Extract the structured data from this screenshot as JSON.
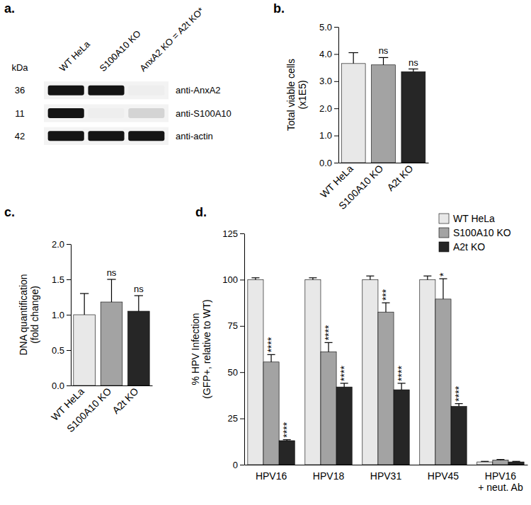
{
  "chart_data": [
    {
      "type": "blot",
      "title": "a.",
      "ylabel": "kDa",
      "categories": [
        "WT HeLa",
        "S100A10 KO",
        "AnxA2 KO = A2t KO*"
      ],
      "rows": [
        {
          "size": 36,
          "label": "anti-AnxA2",
          "values": [
            1,
            1,
            0
          ]
        },
        {
          "size": 11,
          "label": "anti-S100A10",
          "values": [
            1,
            0,
            0.12
          ]
        },
        {
          "size": 42,
          "label": "anti-actin",
          "values": [
            1,
            1,
            1
          ]
        }
      ]
    },
    {
      "type": "bar",
      "title": "b.",
      "ylabel": "Total viable cells\n(x1E5)",
      "categories": [
        "WT HeLa",
        "S100A10 KO",
        "A2t KO"
      ],
      "values": [
        3.65,
        3.6,
        3.35
      ],
      "errors": [
        0.4,
        0.27,
        0.1
      ],
      "annotations": [
        null,
        "ns",
        "ns"
      ],
      "colors": [
        "#e8e8e8",
        "#a3a3a3",
        "#262626"
      ],
      "ylim": [
        0,
        5
      ],
      "yticks": [
        {
          "value": 0,
          "label": "0.0"
        },
        {
          "value": 1,
          "label": "1.0"
        },
        {
          "value": 2,
          "label": "2.0"
        },
        {
          "value": 3,
          "label": "3.0"
        },
        {
          "value": 4,
          "label": "4.0"
        },
        {
          "value": 5,
          "label": "5.0"
        }
      ]
    },
    {
      "type": "bar",
      "title": "c.",
      "ylabel": "DNA quantification\n(fold change)",
      "categories": [
        "WT HeLa",
        "S100A10 KO",
        "A2t KO"
      ],
      "values": [
        1.0,
        1.18,
        1.05
      ],
      "errors": [
        0.3,
        0.32,
        0.22
      ],
      "annotations": [
        null,
        "ns",
        "ns"
      ],
      "colors": [
        "#e8e8e8",
        "#a3a3a3",
        "#262626"
      ],
      "ylim": [
        0,
        2
      ],
      "yticks": [
        {
          "value": 0,
          "label": "0.0"
        },
        0.5,
        {
          "value": 1,
          "label": "1.0"
        },
        1.5,
        {
          "value": 2,
          "label": "2.0"
        }
      ]
    },
    {
      "type": "grouped_bar",
      "title": "d.",
      "ylabel": "% HPV Infection\n(GFP+, relative to WT)",
      "categories": [
        "HPV16",
        "HPV18",
        "HPV31",
        "HPV45",
        "HPV16\n+ neut. Ab"
      ],
      "series": [
        {
          "name": "WT HeLa",
          "color": "#e8e8e8",
          "values": [
            100,
            100,
            100,
            100,
            1.5
          ],
          "errors": [
            1,
            1,
            2,
            2,
            0.3
          ],
          "annotations": [
            null,
            null,
            null,
            null,
            null
          ]
        },
        {
          "name": "S100A10 KO",
          "color": "#a3a3a3",
          "values": [
            55.5,
            61,
            82.5,
            89.5,
            2.5
          ],
          "errors": [
            4,
            5,
            5,
            11,
            0.3
          ],
          "annotations": [
            "****",
            "****",
            "***",
            "*",
            null
          ]
        },
        {
          "name": "A2t KO",
          "color": "#262626",
          "values": [
            13,
            42,
            40.5,
            31.5,
            1.5
          ],
          "errors": [
            0.5,
            2,
            3.5,
            1.5,
            0.3
          ],
          "annotations": [
            "****",
            "****",
            "****",
            "****",
            null
          ]
        }
      ],
      "ylim": [
        0,
        125
      ],
      "yticks": [
        0,
        25,
        50,
        75,
        100,
        125
      ],
      "legend": "top-right"
    }
  ]
}
